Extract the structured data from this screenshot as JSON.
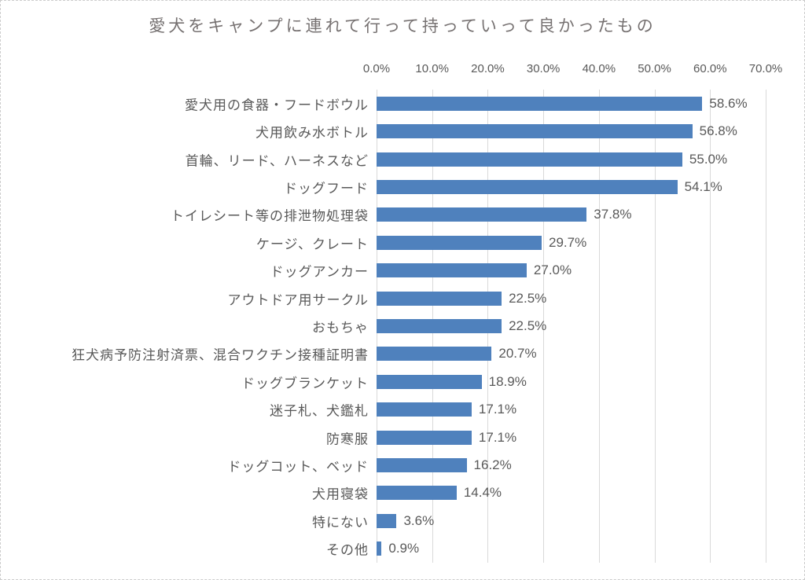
{
  "chart_data": {
    "type": "bar",
    "orientation": "horizontal",
    "title": "愛犬をキャンプに連れて行って持っていって良かったもの",
    "xlabel": "",
    "ylabel": "",
    "xlim": [
      0,
      70
    ],
    "tick_labels": [
      "0.0%",
      "10.0%",
      "20.0%",
      "30.0%",
      "40.0%",
      "50.0%",
      "60.0%",
      "70.0%"
    ],
    "grid": "vertical-light-gray",
    "legend": "none",
    "categories": [
      "愛犬用の食器・フードボウル",
      "犬用飲み水ボトル",
      "首輪、リード、ハーネスなど",
      "ドッグフード",
      "トイレシート等の排泄物処理袋",
      "ケージ、クレート",
      "ドッグアンカー",
      "アウトドア用サークル",
      "おもちゃ",
      "狂犬病予防注射済票、混合ワクチン接種証明書",
      "ドッグブランケット",
      "迷子札、犬鑑札",
      "防寒服",
      "ドッグコット、ベッド",
      "犬用寝袋",
      "特にない",
      "その他"
    ],
    "values": [
      58.6,
      56.8,
      55.0,
      54.1,
      37.8,
      29.7,
      27.0,
      22.5,
      22.5,
      20.7,
      18.9,
      17.1,
      17.1,
      16.2,
      14.4,
      3.6,
      0.9
    ],
    "value_labels": [
      "58.6%",
      "56.8%",
      "55.0%",
      "54.1%",
      "37.8%",
      "29.7%",
      "27.0%",
      "22.5%",
      "22.5%",
      "20.7%",
      "18.9%",
      "17.1%",
      "17.1%",
      "16.2%",
      "14.4%",
      "3.6%",
      "0.9%"
    ],
    "colors": {
      "bar": "#4F81BD",
      "gridline": "#D9D9D9",
      "title_text": "#767171",
      "axis_text": "#595959",
      "value_text": "#595959",
      "border": "#CDCDCD"
    }
  }
}
